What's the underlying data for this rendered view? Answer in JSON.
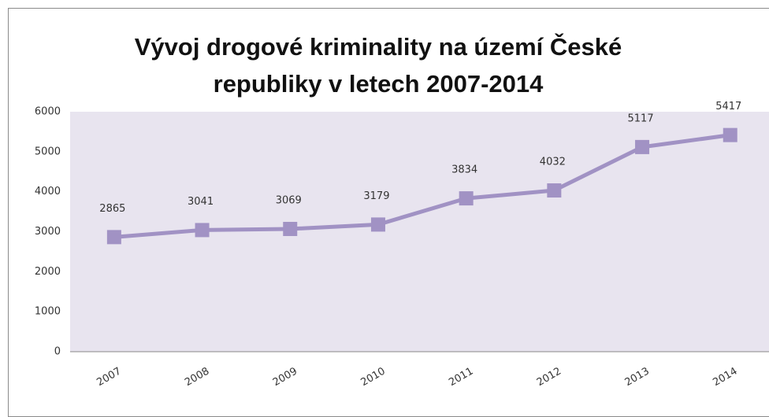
{
  "chart_data": {
    "type": "line",
    "title": "Vývoj drogové kriminality na území České\nrepubliky v letech 2007-2014",
    "categories": [
      "2007",
      "2008",
      "2009",
      "2010",
      "2011",
      "2012",
      "2013",
      "2014"
    ],
    "values": [
      2865,
      3041,
      3069,
      3179,
      3834,
      4032,
      5117,
      5417
    ],
    "color": "#a192c4",
    "ylim": [
      0,
      6000
    ],
    "yticks": [
      0,
      1000,
      2000,
      3000,
      4000,
      5000,
      6000
    ],
    "grid": false
  }
}
